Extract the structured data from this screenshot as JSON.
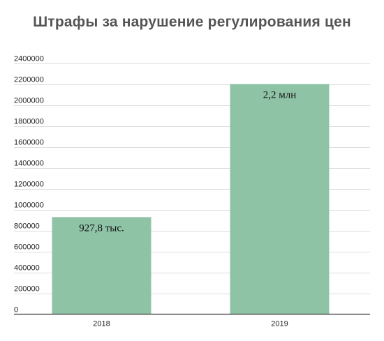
{
  "chart_data": {
    "type": "bar",
    "title": "Штрафы за нарушение регулирования цен",
    "categories": [
      "2018",
      "2019"
    ],
    "values": [
      927800,
      2200000
    ],
    "data_labels": [
      "927,8 тыс.",
      "2,2 млн"
    ],
    "y_ticks": [
      "0",
      "200000",
      "400000",
      "600000",
      "800000",
      "1000000",
      "1200000",
      "1400000",
      "1600000",
      "1800000",
      "2000000",
      "2200000",
      "2400000"
    ],
    "ylim": [
      0,
      2400000
    ],
    "xlabel": "",
    "ylabel": "",
    "grid": true,
    "legend": "none",
    "colors": {
      "bar": "#8fc3a6",
      "grid": "#dddddd",
      "axis": "#333333",
      "title": "#555555"
    }
  }
}
